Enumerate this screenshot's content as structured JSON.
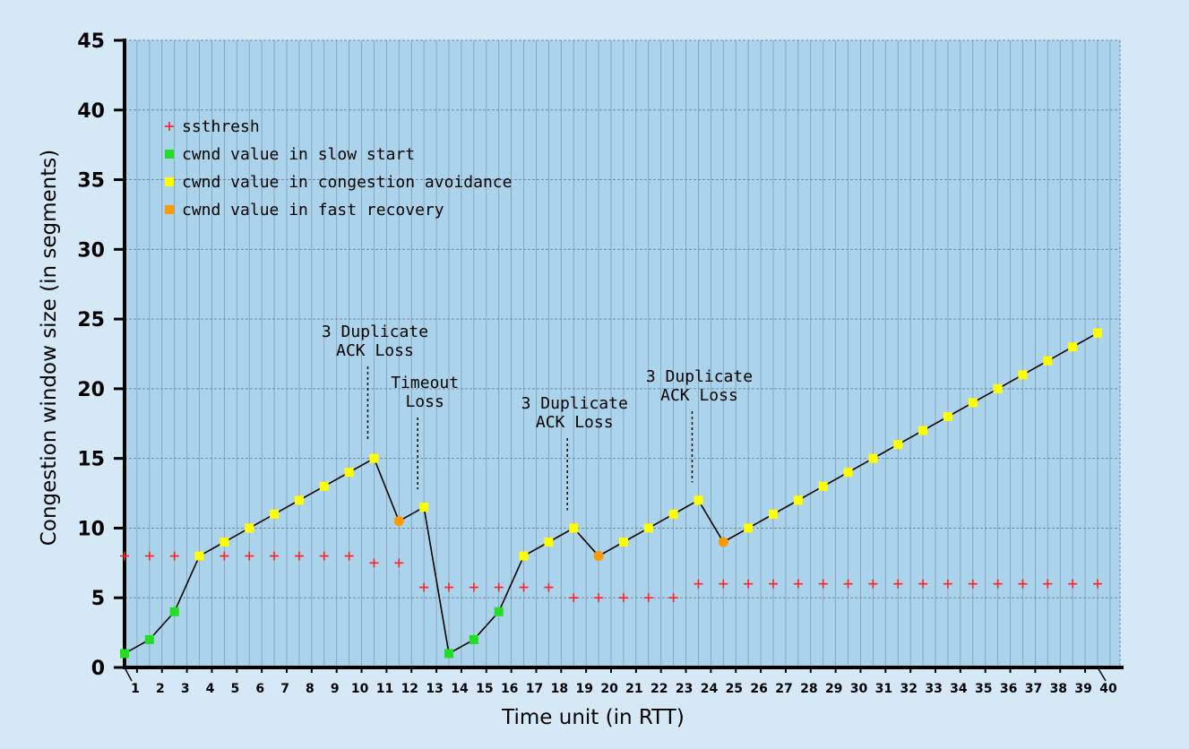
{
  "chart_data": {
    "type": "line",
    "title": "",
    "xlabel": "Time unit (in RTT)",
    "ylabel": "Congestion window size (in segments)",
    "xlim": [
      1,
      40
    ],
    "ylim": [
      0,
      45
    ],
    "x_ticks": [
      1,
      2,
      3,
      4,
      5,
      6,
      7,
      8,
      9,
      10,
      11,
      12,
      13,
      14,
      15,
      16,
      17,
      18,
      19,
      20,
      21,
      22,
      23,
      24,
      25,
      26,
      27,
      28,
      29,
      30,
      31,
      32,
      33,
      34,
      35,
      36,
      37,
      38,
      39,
      40
    ],
    "y_ticks": [
      0,
      5,
      10,
      15,
      20,
      25,
      30,
      35,
      40,
      45
    ],
    "grid": true,
    "legend_position": "top-left",
    "legend": [
      {
        "label": "ssthresh",
        "marker": "plus",
        "color": "#ff2020"
      },
      {
        "label": "cwnd value in slow start",
        "marker": "square",
        "color": "#22dd22"
      },
      {
        "label": "cwnd value in congestion avoidance",
        "marker": "square",
        "color": "#ffff00"
      },
      {
        "label": "cwnd value in fast recovery",
        "marker": "square",
        "color": "#ff9900"
      }
    ],
    "series": [
      {
        "name": "ssthresh",
        "x": [
          1,
          2,
          3,
          4,
          5,
          6,
          7,
          8,
          9,
          10,
          11,
          12,
          13,
          14,
          15,
          16,
          17,
          18,
          19,
          20,
          21,
          22,
          23,
          24,
          25,
          26,
          27,
          28,
          29,
          30,
          31,
          32,
          33,
          34,
          35,
          36,
          37,
          38,
          39,
          40
        ],
        "y": [
          8,
          8,
          8,
          8,
          8,
          8,
          8,
          8,
          8,
          8,
          7.5,
          7.5,
          5.75,
          5.75,
          5.75,
          5.75,
          5.75,
          5.75,
          5,
          5,
          5,
          5,
          5,
          6,
          6,
          6,
          6,
          6,
          6,
          6,
          6,
          6,
          6,
          6,
          6,
          6,
          6,
          6,
          6,
          6
        ]
      },
      {
        "name": "cwnd",
        "x": [
          1,
          2,
          3,
          4,
          5,
          6,
          7,
          8,
          9,
          10,
          11,
          12,
          13,
          14,
          15,
          16,
          17,
          18,
          19,
          20,
          21,
          22,
          23,
          24,
          25,
          26,
          27,
          28,
          29,
          30,
          31,
          32,
          33,
          34,
          35,
          36,
          37,
          38,
          39,
          40
        ],
        "y": [
          1,
          2,
          4,
          8,
          9,
          10,
          11,
          12,
          13,
          14,
          15,
          10.5,
          11.5,
          1,
          2,
          4,
          8,
          9,
          10,
          8,
          9,
          10,
          11,
          12,
          9,
          10,
          11,
          12,
          13,
          14,
          15,
          16,
          17,
          18,
          19,
          20,
          21,
          22,
          23,
          24
        ],
        "phase": [
          "ss",
          "ss",
          "ss",
          "ca",
          "ca",
          "ca",
          "ca",
          "ca",
          "ca",
          "ca",
          "ca",
          "fr",
          "ca",
          "ss",
          "ss",
          "ss",
          "ca",
          "ca",
          "ca",
          "fr",
          "ca",
          "ca",
          "ca",
          "ca",
          "fr",
          "ca",
          "ca",
          "ca",
          "ca",
          "ca",
          "ca",
          "ca",
          "ca",
          "ca",
          "ca",
          "ca",
          "ca",
          "ca",
          "ca",
          "ca"
        ]
      }
    ],
    "annotations": [
      {
        "lines": [
          "3 Duplicate",
          "ACK Loss"
        ],
        "at_x": 11
      },
      {
        "lines": [
          "Timeout",
          "Loss"
        ],
        "at_x": 13
      },
      {
        "lines": [
          "3 Duplicate",
          "ACK Loss"
        ],
        "at_x": 19
      },
      {
        "lines": [
          "3 Duplicate",
          "ACK Loss"
        ],
        "at_x": 24
      }
    ],
    "colors": {
      "background": "#d4e9f5",
      "plot_bg": "#acd3ec",
      "grid": "#6f8ea3",
      "line": "#000000",
      "ssthresh": "#ff2020",
      "slow_start": "#22dd22",
      "cong_avoid": "#ffff00",
      "fast_recovery": "#ff9900"
    }
  }
}
